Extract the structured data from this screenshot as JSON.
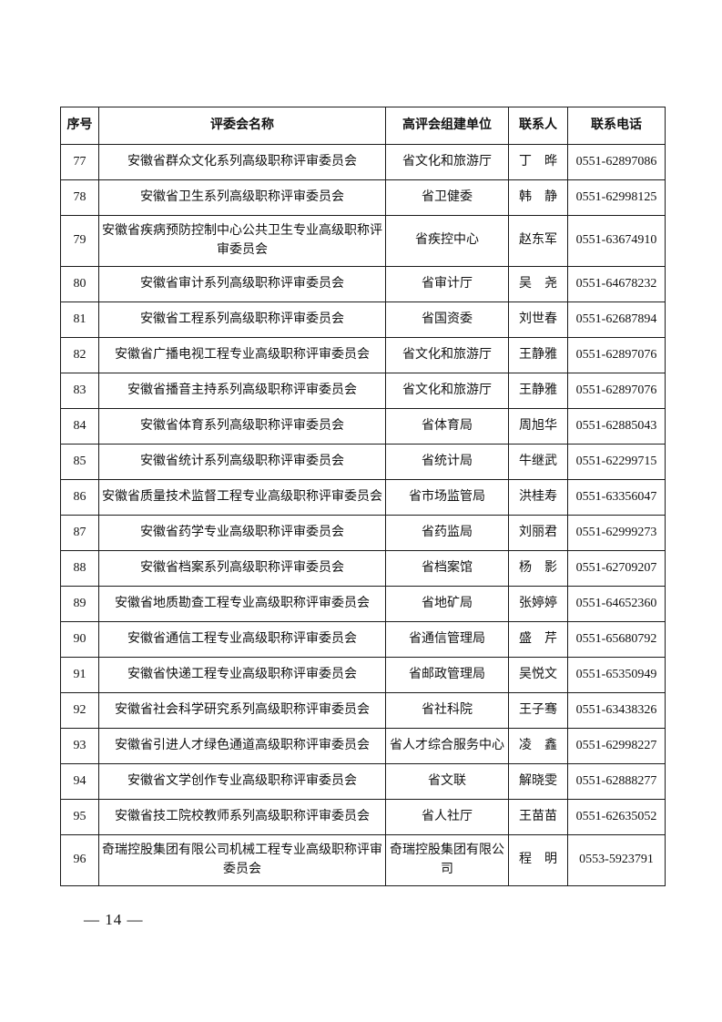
{
  "page": {
    "footer_page_number": "— 14 —"
  },
  "table": {
    "columns": [
      "序号",
      "评委会名称",
      "高评会组建单位",
      "联系人",
      "联系电话"
    ],
    "rows": [
      {
        "no": "77",
        "name": "安徽省群众文化系列高级职称评审委员会",
        "unit": "省文化和旅游厅",
        "contact": "丁　晔",
        "phone": "0551-62897086"
      },
      {
        "no": "78",
        "name": "安徽省卫生系列高级职称评审委员会",
        "unit": "省卫健委",
        "contact": "韩　静",
        "phone": "0551-62998125"
      },
      {
        "no": "79",
        "name": "安徽省疾病预防控制中心公共卫生专业高级职称评审委员会",
        "unit": "省疾控中心",
        "contact": "赵东军",
        "phone": "0551-63674910"
      },
      {
        "no": "80",
        "name": "安徽省审计系列高级职称评审委员会",
        "unit": "省审计厅",
        "contact": "吴　尧",
        "phone": "0551-64678232"
      },
      {
        "no": "81",
        "name": "安徽省工程系列高级职称评审委员会",
        "unit": "省国资委",
        "contact": "刘世春",
        "phone": "0551-62687894"
      },
      {
        "no": "82",
        "name": "安徽省广播电视工程专业高级职称评审委员会",
        "unit": "省文化和旅游厅",
        "contact": "王静雅",
        "phone": "0551-62897076"
      },
      {
        "no": "83",
        "name": "安徽省播音主持系列高级职称评审委员会",
        "unit": "省文化和旅游厅",
        "contact": "王静雅",
        "phone": "0551-62897076"
      },
      {
        "no": "84",
        "name": "安徽省体育系列高级职称评审委员会",
        "unit": "省体育局",
        "contact": "周旭华",
        "phone": "0551-62885043"
      },
      {
        "no": "85",
        "name": "安徽省统计系列高级职称评审委员会",
        "unit": "省统计局",
        "contact": "牛继武",
        "phone": "0551-62299715"
      },
      {
        "no": "86",
        "name": "安徽省质量技术监督工程专业高级职称评审委员会",
        "unit": "省市场监管局",
        "contact": "洪桂寿",
        "phone": "0551-63356047"
      },
      {
        "no": "87",
        "name": "安徽省药学专业高级职称评审委员会",
        "unit": "省药监局",
        "contact": "刘丽君",
        "phone": "0551-62999273"
      },
      {
        "no": "88",
        "name": "安徽省档案系列高级职称评审委员会",
        "unit": "省档案馆",
        "contact": "杨　影",
        "phone": "0551-62709207"
      },
      {
        "no": "89",
        "name": "安徽省地质勘查工程专业高级职称评审委员会",
        "unit": "省地矿局",
        "contact": "张婷婷",
        "phone": "0551-64652360"
      },
      {
        "no": "90",
        "name": "安徽省通信工程专业高级职称评审委员会",
        "unit": "省通信管理局",
        "contact": "盛　芹",
        "phone": "0551-65680792"
      },
      {
        "no": "91",
        "name": "安徽省快递工程专业高级职称评审委员会",
        "unit": "省邮政管理局",
        "contact": "吴悦文",
        "phone": "0551-65350949"
      },
      {
        "no": "92",
        "name": "安徽省社会科学研究系列高级职称评审委员会",
        "unit": "省社科院",
        "contact": "王子骞",
        "phone": "0551-63438326"
      },
      {
        "no": "93",
        "name": "安徽省引进人才绿色通道高级职称评审委员会",
        "unit": "省人才综合服务中心",
        "contact": "凌　鑫",
        "phone": "0551-62998227"
      },
      {
        "no": "94",
        "name": "安徽省文学创作专业高级职称评审委员会",
        "unit": "省文联",
        "contact": "解晓雯",
        "phone": "0551-62888277"
      },
      {
        "no": "95",
        "name": "安徽省技工院校教师系列高级职称评审委员会",
        "unit": "省人社厅",
        "contact": "王苗苗",
        "phone": "0551-62635052"
      },
      {
        "no": "96",
        "name": "奇瑞控股集团有限公司机械工程专业高级职称评审委员会",
        "unit": "奇瑞控股集团有限公司",
        "contact": "程　明",
        "phone": "0553-5923791"
      }
    ]
  }
}
